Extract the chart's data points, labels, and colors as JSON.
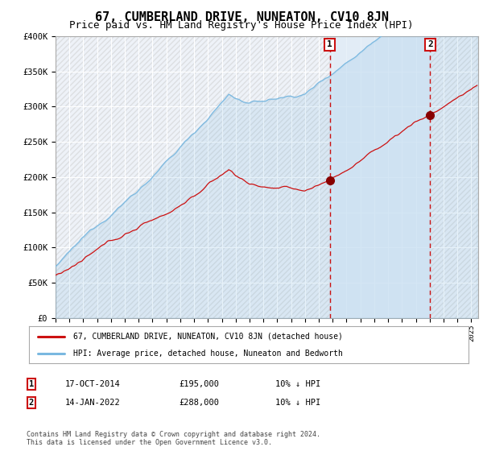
{
  "title": "67, CUMBERLAND DRIVE, NUNEATON, CV10 8JN",
  "subtitle": "Price paid vs. HM Land Registry's House Price Index (HPI)",
  "title_fontsize": 11,
  "subtitle_fontsize": 9,
  "hpi_color": "#7ab8e0",
  "price_color": "#cc1111",
  "marker_color": "#880000",
  "vline_color": "#cc1111",
  "sale1_date_num": 2014.79,
  "sale1_price": 195000,
  "sale2_date_num": 2022.04,
  "sale2_price": 288000,
  "legend_entry1": "67, CUMBERLAND DRIVE, NUNEATON, CV10 8JN (detached house)",
  "legend_entry2": "HPI: Average price, detached house, Nuneaton and Bedworth",
  "table_row1": [
    "1",
    "17-OCT-2014",
    "£195,000",
    "10% ↓ HPI"
  ],
  "table_row2": [
    "2",
    "14-JAN-2022",
    "£288,000",
    "10% ↓ HPI"
  ],
  "footnote": "Contains HM Land Registry data © Crown copyright and database right 2024.\nThis data is licensed under the Open Government Licence v3.0.",
  "ylim": [
    0,
    400000
  ],
  "yticks": [
    0,
    50000,
    100000,
    150000,
    200000,
    250000,
    300000,
    350000,
    400000
  ],
  "background_color": "#ffffff",
  "plot_bg_color": "#eef2f8",
  "grid_color": "#ffffff",
  "highlight_bg_color": "#dae8f5"
}
